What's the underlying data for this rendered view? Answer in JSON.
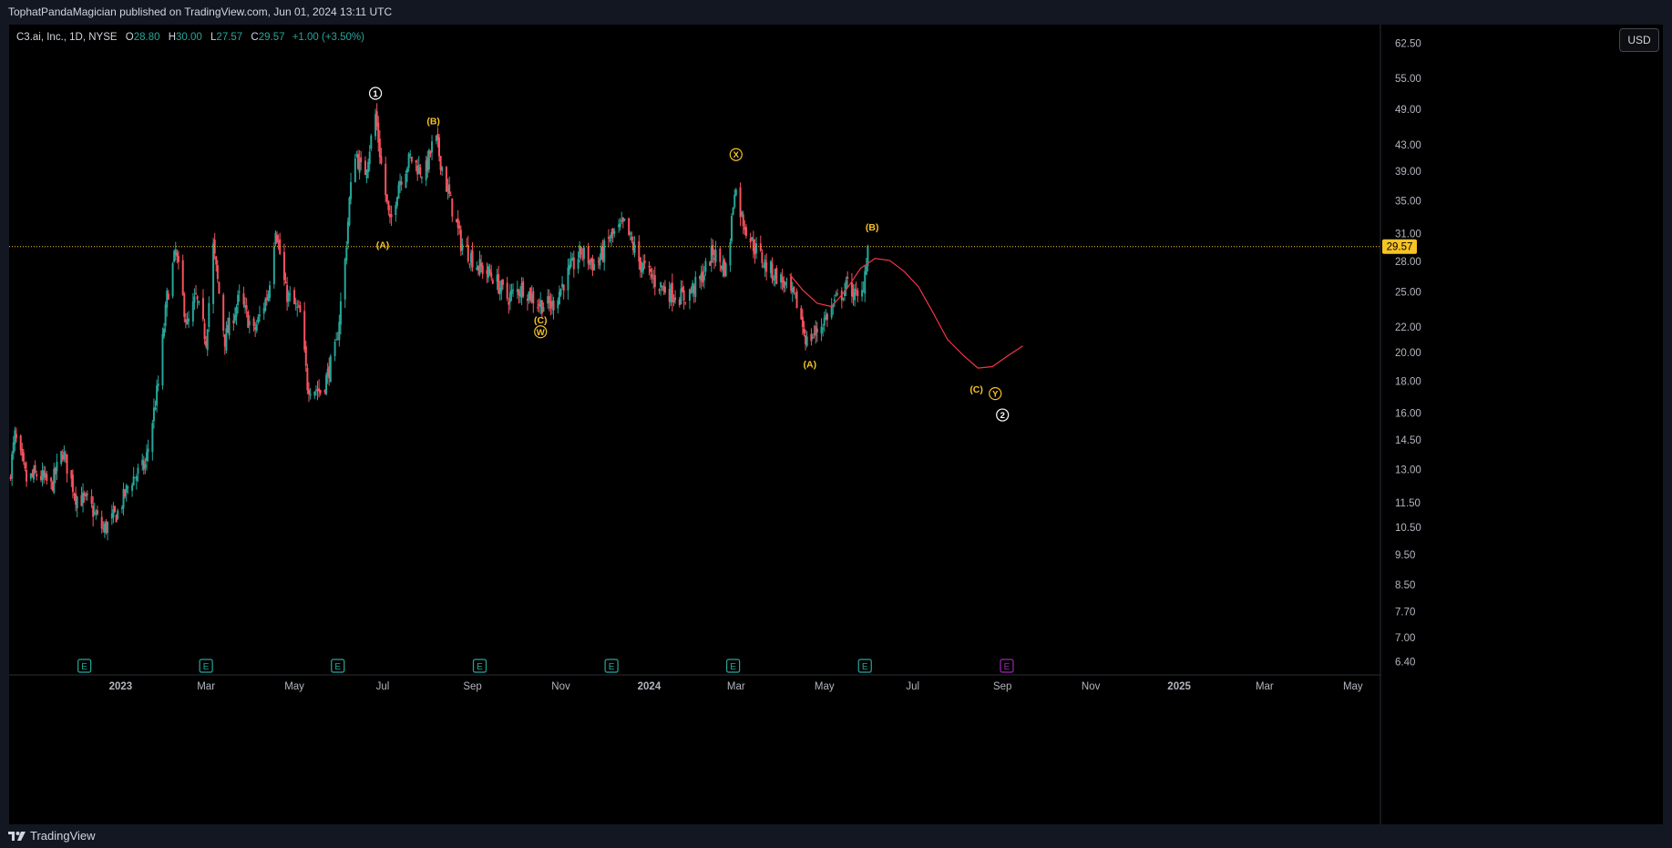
{
  "header": {
    "published_text": "TophatPandaMagician published on TradingView.com, Jun 01, 2024 13:11 UTC"
  },
  "legend": {
    "symbol": "C3.ai, Inc., 1D, NYSE",
    "open_label": "O",
    "open": "28.80",
    "high_label": "H",
    "high": "30.00",
    "low_label": "L",
    "low": "27.57",
    "close_label": "C",
    "close": "29.57",
    "change": "+1.00 (+3.50%)"
  },
  "currency_button": "USD",
  "footer": {
    "brand": "TradingView",
    "logo_icon": "tradingview-logo-icon"
  },
  "colors": {
    "up": "#26a69a",
    "down": "#f7525f",
    "price_line": "#f7c325",
    "projection": "#f23645",
    "wave_label": "#f7c325",
    "primary_label": "#ffffff",
    "earnings": "#26a69a",
    "earnings_future": "#9c27b0"
  },
  "chart_data": {
    "type": "candlestick",
    "title": "C3.ai, Inc., 1D, NYSE",
    "y_scale": "log",
    "ylim": [
      6.1,
      67
    ],
    "xlim": [
      "2022-10-16",
      "2025-05-20"
    ],
    "y_ticks": [
      "62.50",
      "55.00",
      "49.00",
      "43.00",
      "39.00",
      "35.00",
      "31.00",
      "28.00",
      "25.00",
      "22.00",
      "20.00",
      "18.00",
      "16.00",
      "14.50",
      "13.00",
      "11.50",
      "10.50",
      "9.50",
      "8.50",
      "7.70",
      "7.00",
      "6.40"
    ],
    "x_ticks": [
      {
        "label": "2023",
        "date": "2023-01-01"
      },
      {
        "label": "Mar",
        "date": "2023-03-01"
      },
      {
        "label": "May",
        "date": "2023-05-01"
      },
      {
        "label": "Jul",
        "date": "2023-07-01"
      },
      {
        "label": "Sep",
        "date": "2023-09-01"
      },
      {
        "label": "Nov",
        "date": "2023-11-01"
      },
      {
        "label": "2024",
        "date": "2024-01-01"
      },
      {
        "label": "Mar",
        "date": "2024-03-01"
      },
      {
        "label": "May",
        "date": "2024-05-01"
      },
      {
        "label": "Jul",
        "date": "2024-07-01"
      },
      {
        "label": "Sep",
        "date": "2024-09-01"
      },
      {
        "label": "Nov",
        "date": "2024-11-01"
      },
      {
        "label": "2025",
        "date": "2025-01-01"
      },
      {
        "label": "Mar",
        "date": "2025-03-01"
      },
      {
        "label": "May",
        "date": "2025-05-01"
      }
    ],
    "last_price": "29.57",
    "close_path": [
      [
        "2022-10-16",
        12.5
      ],
      [
        "2022-10-20",
        14.7
      ],
      [
        "2022-10-28",
        12.5
      ],
      [
        "2022-11-05",
        12.8
      ],
      [
        "2022-11-14",
        12.2
      ],
      [
        "2022-11-22",
        13.9
      ],
      [
        "2022-12-01",
        11.8
      ],
      [
        "2022-12-10",
        11.5
      ],
      [
        "2022-12-20",
        10.4
      ],
      [
        "2022-12-30",
        11.1
      ],
      [
        "2023-01-08",
        12.5
      ],
      [
        "2023-01-18",
        13.2
      ],
      [
        "2023-01-27",
        17.8
      ],
      [
        "2023-02-02",
        24.5
      ],
      [
        "2023-02-08",
        29.0
      ],
      [
        "2023-02-16",
        22.0
      ],
      [
        "2023-02-22",
        24.5
      ],
      [
        "2023-03-01",
        21.0
      ],
      [
        "2023-03-06",
        29.5
      ],
      [
        "2023-03-14",
        21.0
      ],
      [
        "2023-03-24",
        24.5
      ],
      [
        "2023-04-03",
        21.5
      ],
      [
        "2023-04-13",
        25.0
      ],
      [
        "2023-04-18",
        32.0
      ],
      [
        "2023-04-25",
        25.0
      ],
      [
        "2023-05-05",
        23.0
      ],
      [
        "2023-05-10",
        17.8
      ],
      [
        "2023-05-20",
        17.3
      ],
      [
        "2023-05-30",
        20.5
      ],
      [
        "2023-06-05",
        28.0
      ],
      [
        "2023-06-08",
        35.0
      ],
      [
        "2023-06-12",
        42.0
      ],
      [
        "2023-06-18",
        38.0
      ],
      [
        "2023-06-26",
        48.0
      ],
      [
        "2023-06-30",
        40.0
      ],
      [
        "2023-07-06",
        32.0
      ],
      [
        "2023-07-12",
        37.5
      ],
      [
        "2023-07-20",
        41.0
      ],
      [
        "2023-07-30",
        38.5
      ],
      [
        "2023-08-06",
        44.5
      ],
      [
        "2023-08-14",
        37.0
      ],
      [
        "2023-08-24",
        30.0
      ],
      [
        "2023-09-05",
        27.5
      ],
      [
        "2023-09-15",
        26.5
      ],
      [
        "2023-09-25",
        24.5
      ],
      [
        "2023-10-06",
        25.5
      ],
      [
        "2023-10-16",
        24.0
      ],
      [
        "2023-10-26",
        23.8
      ],
      [
        "2023-11-05",
        26.5
      ],
      [
        "2023-11-15",
        29.0
      ],
      [
        "2023-11-25",
        27.5
      ],
      [
        "2023-12-05",
        30.5
      ],
      [
        "2023-12-15",
        32.0
      ],
      [
        "2023-12-25",
        28.0
      ],
      [
        "2024-01-05",
        26.0
      ],
      [
        "2024-01-15",
        25.0
      ],
      [
        "2024-01-25",
        24.5
      ],
      [
        "2024-02-05",
        26.0
      ],
      [
        "2024-02-14",
        29.0
      ],
      [
        "2024-02-24",
        27.0
      ],
      [
        "2024-02-29",
        37.0
      ],
      [
        "2024-03-05",
        33.0
      ],
      [
        "2024-03-12",
        30.0
      ],
      [
        "2024-03-22",
        27.5
      ],
      [
        "2024-04-02",
        26.0
      ],
      [
        "2024-04-12",
        24.0
      ],
      [
        "2024-04-19",
        20.8
      ],
      [
        "2024-04-28",
        22.0
      ],
      [
        "2024-05-08",
        24.0
      ],
      [
        "2024-05-18",
        25.8
      ],
      [
        "2024-05-26",
        23.8
      ],
      [
        "2024-05-31",
        29.57
      ]
    ],
    "projection_path": [
      [
        "2024-04-07",
        26.7
      ],
      [
        "2024-04-16",
        25.2
      ],
      [
        "2024-04-26",
        24.0
      ],
      [
        "2024-05-06",
        23.7
      ],
      [
        "2024-05-16",
        25.2
      ],
      [
        "2024-05-26",
        27.3
      ],
      [
        "2024-06-05",
        28.3
      ],
      [
        "2024-06-15",
        28.1
      ],
      [
        "2024-06-25",
        27.0
      ],
      [
        "2024-07-05",
        25.5
      ],
      [
        "2024-07-15",
        23.2
      ],
      [
        "2024-07-25",
        21.0
      ],
      [
        "2024-08-05",
        19.8
      ],
      [
        "2024-08-15",
        18.9
      ],
      [
        "2024-08-25",
        19.0
      ],
      [
        "2024-09-05",
        19.8
      ],
      [
        "2024-09-15",
        20.5
      ]
    ],
    "wave_labels": [
      {
        "text": "1",
        "style": "primary-circle",
        "date": "2023-06-26",
        "price": 52.0
      },
      {
        "text": "(B)",
        "style": "minor",
        "date": "2023-08-05",
        "price": 47.0
      },
      {
        "text": "(A)",
        "style": "minor",
        "date": "2023-07-01",
        "price": 29.8
      },
      {
        "text": "(C)",
        "style": "minor",
        "date": "2023-10-18",
        "price": 22.6
      },
      {
        "text": "W",
        "style": "intermediate-circle",
        "date": "2023-10-18",
        "price": 21.6
      },
      {
        "text": "X",
        "style": "intermediate-circle",
        "date": "2024-03-01",
        "price": 41.5
      },
      {
        "text": "(A)",
        "style": "minor",
        "date": "2024-04-21",
        "price": 19.2
      },
      {
        "text": "(B)",
        "style": "minor",
        "date": "2024-06-03",
        "price": 31.8
      },
      {
        "text": "(C)",
        "style": "minor",
        "date": "2024-08-14",
        "price": 17.5
      },
      {
        "text": "Y",
        "style": "intermediate-circle",
        "date": "2024-08-27",
        "price": 17.2
      },
      {
        "text": "2",
        "style": "primary-circle",
        "date": "2024-09-01",
        "price": 15.9
      }
    ],
    "earnings_markers": [
      {
        "date": "2022-12-07",
        "label": "E",
        "future": false
      },
      {
        "date": "2023-03-01",
        "label": "E",
        "future": false
      },
      {
        "date": "2023-05-31",
        "label": "E",
        "future": false
      },
      {
        "date": "2023-09-06",
        "label": "E",
        "future": false
      },
      {
        "date": "2023-12-06",
        "label": "E",
        "future": false
      },
      {
        "date": "2024-02-28",
        "label": "E",
        "future": false
      },
      {
        "date": "2024-05-29",
        "label": "E",
        "future": false
      },
      {
        "date": "2024-09-04",
        "label": "E",
        "future": true
      }
    ]
  }
}
